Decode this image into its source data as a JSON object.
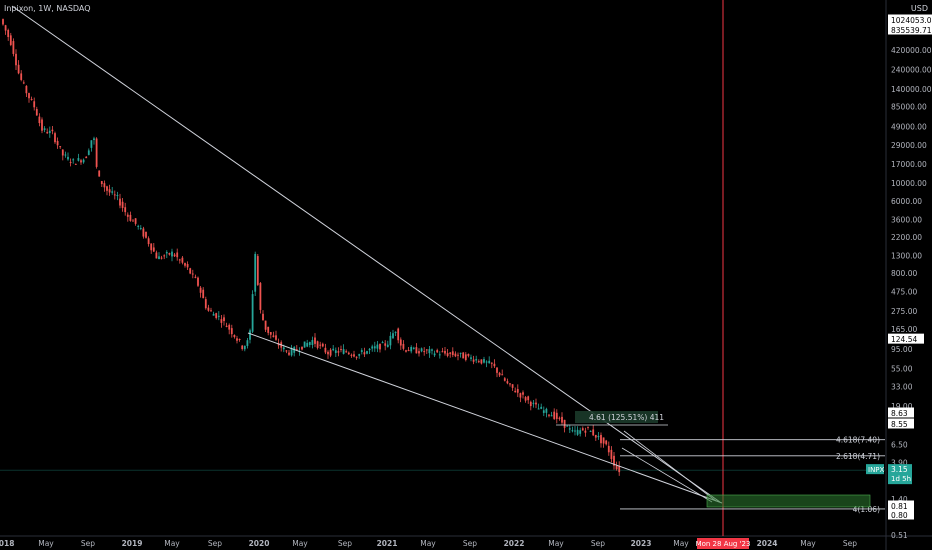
{
  "header": {
    "symbol_line": "Inpixon, 1W, NASDAQ",
    "currency": "USD"
  },
  "colors": {
    "background": "#000000",
    "up": "#26a69a",
    "down": "#ef5350",
    "trendline": "#d1d4dc",
    "axis_text": "#b2b5be",
    "vertical_marker": "#f23645",
    "last_price_bg": "#26a69a",
    "target_box": "#2e7d32"
  },
  "chart_data": {
    "type": "candlestick",
    "title": "Inpixon, 1W, NASDAQ",
    "y_scale": "log",
    "ylim": [
      0.51,
      1600000
    ],
    "x_ticks": [
      "2018",
      "May",
      "Sep",
      "2019",
      "May",
      "Sep",
      "2020",
      "May",
      "Sep",
      "2021",
      "May",
      "Sep",
      "2022",
      "May",
      "Sep",
      "2023",
      "May",
      "Mon 28 Aug '23",
      "2024",
      "May",
      "Sep"
    ],
    "y_ticks": [
      "1024053.03",
      "835539.71",
      "420000.00",
      "240000.00",
      "140000.00",
      "85000.00",
      "49000.00",
      "29000.00",
      "17000.00",
      "10000.00",
      "6000.00",
      "3600.00",
      "2200.00",
      "1300.00",
      "800.00",
      "475.00",
      "275.00",
      "165.00",
      "124.54",
      "95.00",
      "55.00",
      "33.00",
      "19.00",
      "8.63",
      "8.55",
      "6.50",
      "3.90",
      "1.40",
      "0.81",
      "0.80",
      "0.51"
    ],
    "price_path": [
      {
        "t": "2018",
        "v": 1024053
      },
      {
        "t": "May 2018",
        "v": 49000
      },
      {
        "t": "Sep 2018",
        "v": 29000
      },
      {
        "t": "2019",
        "v": 10000
      },
      {
        "t": "May 2019",
        "v": 3600
      },
      {
        "t": "Sep 2019",
        "v": 800
      },
      {
        "t": "2020",
        "v": 165
      },
      {
        "t": "2020 spike",
        "v": 2200
      },
      {
        "t": "May 2020",
        "v": 95
      },
      {
        "t": "Sep 2020",
        "v": 95
      },
      {
        "t": "2021",
        "v": 165
      },
      {
        "t": "May 2021",
        "v": 95
      },
      {
        "t": "Sep 2021",
        "v": 95
      },
      {
        "t": "2022",
        "v": 55
      },
      {
        "t": "May 2022",
        "v": 19
      },
      {
        "t": "Sep 2022",
        "v": 8.63
      },
      {
        "t": "Nov 2022",
        "v": 3.15
      }
    ],
    "labels": {
      "last_price_ticker": "INPX",
      "last_price": "3.15",
      "countdown": "1d 5h",
      "price_marker_1": "124.54",
      "price_marker_2": "8.63",
      "price_marker_3": "8.55",
      "price_marker_4": "0.81",
      "price_marker_5": "0.80",
      "vertical_date": "Mon 28 Aug '23"
    },
    "annotations": [
      {
        "text": "4.61 (125.51%) 411"
      },
      {
        "text": "4.618(7.40)"
      },
      {
        "text": "2.618(4.71)"
      },
      {
        "text": "4(1.06)"
      }
    ]
  }
}
